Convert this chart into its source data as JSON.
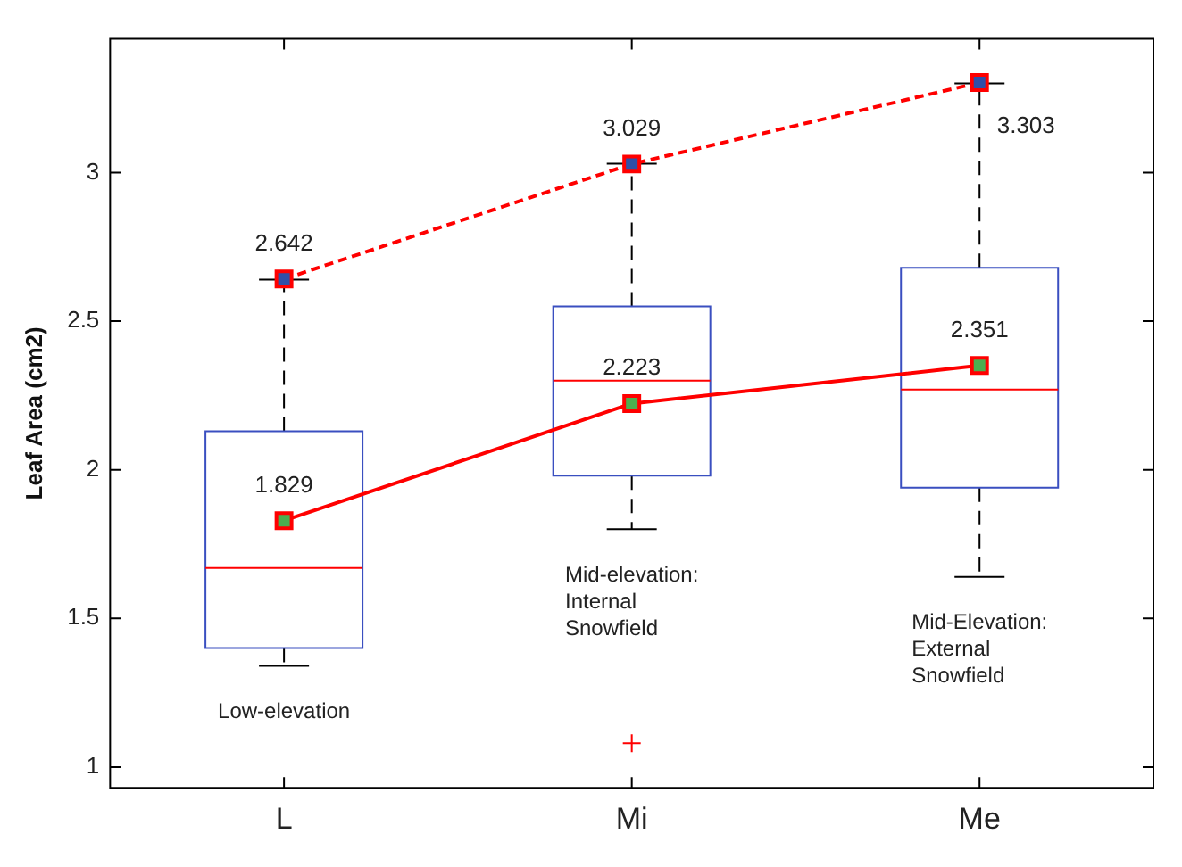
{
  "chart_data": {
    "type": "box",
    "ylabel": "Leaf Area (cm2)",
    "categories": [
      "L",
      "Mi",
      "Me"
    ],
    "ylim": [
      0.93,
      3.45
    ],
    "yticks": [
      1,
      1.5,
      2,
      2.5,
      3
    ],
    "series": [
      {
        "color": "#3a4fc0",
        "boxes": [
          {
            "low": 1.34,
            "q1": 1.4,
            "median": 1.67,
            "q3": 2.13,
            "high": 2.64
          },
          {
            "low": 1.8,
            "q1": 1.98,
            "median": 2.3,
            "q3": 2.55,
            "high": 3.03,
            "outliers": [
              1.08
            ]
          },
          {
            "low": 1.64,
            "q1": 1.94,
            "median": 2.27,
            "q3": 2.68,
            "high": 3.3
          }
        ]
      },
      {
        "type": "line",
        "color": "#ff0000",
        "line_style": "dashed",
        "marker": "square",
        "colors": [
          "#2f4fa8",
          "#2f4fa8",
          "#2f4fa8"
        ],
        "values": [
          2.642,
          3.029,
          3.303
        ]
      },
      {
        "type": "line",
        "color": "#ff0000",
        "line_style": "solid",
        "marker": "square",
        "colors": [
          "#4caf50",
          "#4caf50",
          "#4caf50"
        ],
        "values": [
          1.829,
          2.223,
          2.351
        ]
      }
    ],
    "data_labels": true,
    "annotations": [
      "Low-elevation",
      "Mid-elevation:\nInternal\nSnowfield",
      "Mid-Elevation:\nExternal\nSnowfield"
    ]
  }
}
